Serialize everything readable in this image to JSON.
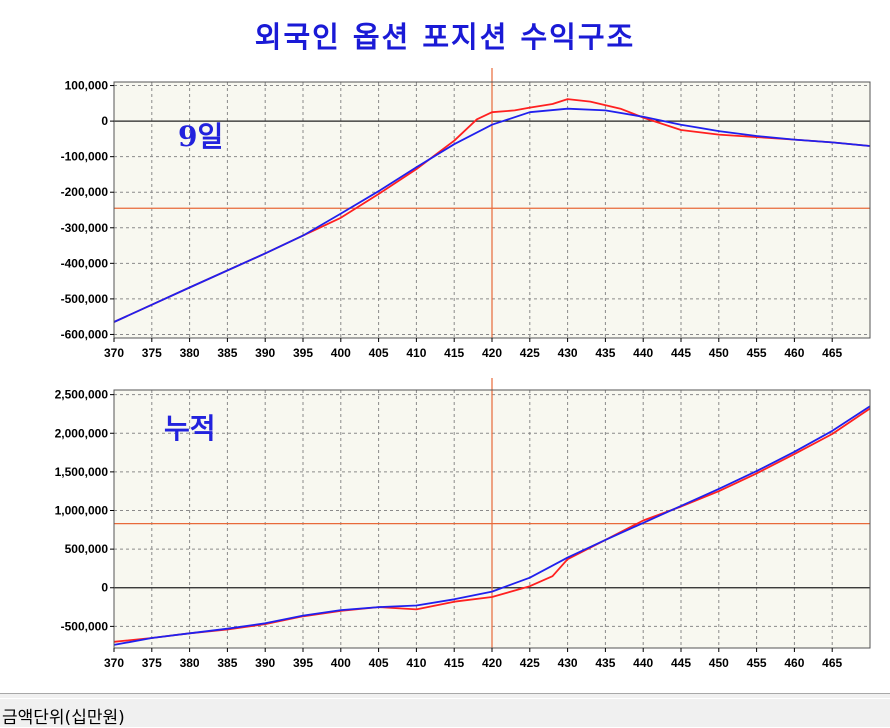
{
  "title": "외국인 옵션 포지션 수익구조",
  "status_text": "금액단위(십만원)",
  "colors": {
    "red_series": "#ff2020",
    "blue_series": "#2020ee",
    "crosshair": "#e86a3a",
    "grid": "#8a8a8a",
    "plot_bg": "#f8f8f0"
  },
  "chart_data": [
    {
      "type": "line",
      "panel_label": "9일",
      "x_ticks": [
        370,
        375,
        380,
        385,
        390,
        395,
        400,
        405,
        410,
        415,
        420,
        425,
        430,
        435,
        440,
        445,
        450,
        455,
        460,
        465
      ],
      "y_ticks": [
        100000,
        0,
        -100000,
        -200000,
        -300000,
        -400000,
        -500000,
        -600000
      ],
      "y_tick_labels": [
        "100,000",
        "0",
        "-100,000",
        "-200,000",
        "-300,000",
        "-400,000",
        "-500,000",
        "-600,000"
      ],
      "xlim": [
        370,
        470
      ],
      "ylim": [
        -610000,
        110000
      ],
      "crosshair": {
        "x": 420,
        "y": -245000
      },
      "series": [
        {
          "color": "red",
          "x": [
            370,
            380,
            390,
            395,
            400,
            405,
            410,
            415,
            418,
            420,
            423,
            425,
            428,
            430,
            433,
            437,
            440,
            445,
            450,
            455,
            460,
            465,
            470
          ],
          "y": [
            -565000,
            -468000,
            -372000,
            -322000,
            -272000,
            -205000,
            -135000,
            -55000,
            5000,
            25000,
            30000,
            38000,
            48000,
            62000,
            55000,
            35000,
            10000,
            -25000,
            -38000,
            -45000,
            -52000,
            -60000,
            -70000
          ]
        },
        {
          "color": "blue",
          "x": [
            370,
            380,
            390,
            395,
            400,
            405,
            410,
            415,
            420,
            425,
            430,
            435,
            440,
            445,
            450,
            455,
            460,
            465,
            470
          ],
          "y": [
            -565000,
            -468000,
            -372000,
            -322000,
            -260000,
            -197000,
            -130000,
            -65000,
            -10000,
            25000,
            35000,
            30000,
            12000,
            -10000,
            -28000,
            -42000,
            -52000,
            -60000,
            -70000
          ]
        }
      ]
    },
    {
      "type": "line",
      "panel_label": "누적",
      "x_ticks": [
        370,
        375,
        380,
        385,
        390,
        395,
        400,
        405,
        410,
        415,
        420,
        425,
        430,
        435,
        440,
        445,
        450,
        455,
        460,
        465
      ],
      "y_ticks": [
        2500000,
        2000000,
        1500000,
        1000000,
        500000,
        0,
        -500000
      ],
      "y_tick_labels": [
        "2,500,000",
        "2,000,000",
        "1,500,000",
        "1,000,000",
        "500,000",
        "0",
        "-500,000"
      ],
      "xlim": [
        370,
        470
      ],
      "ylim": [
        -780000,
        2560000
      ],
      "crosshair": {
        "x": 420,
        "y": 830000
      },
      "series": [
        {
          "color": "red",
          "x": [
            370,
            375,
            380,
            385,
            390,
            395,
            400,
            405,
            410,
            415,
            420,
            425,
            428,
            430,
            435,
            440,
            445,
            450,
            455,
            460,
            465,
            470
          ],
          "y": [
            -700000,
            -650000,
            -590000,
            -540000,
            -470000,
            -370000,
            -300000,
            -250000,
            -280000,
            -180000,
            -120000,
            20000,
            150000,
            370000,
            620000,
            870000,
            1050000,
            1250000,
            1480000,
            1730000,
            1990000,
            2320000
          ],
          "first_series": true
        },
        {
          "color": "blue",
          "x": [
            370,
            375,
            380,
            385,
            390,
            395,
            400,
            405,
            410,
            415,
            420,
            425,
            430,
            435,
            440,
            445,
            450,
            455,
            460,
            465,
            470
          ],
          "y": [
            -740000,
            -650000,
            -590000,
            -530000,
            -460000,
            -360000,
            -290000,
            -250000,
            -230000,
            -150000,
            -50000,
            130000,
            390000,
            620000,
            840000,
            1060000,
            1280000,
            1510000,
            1760000,
            2030000,
            2350000
          ]
        }
      ]
    }
  ]
}
